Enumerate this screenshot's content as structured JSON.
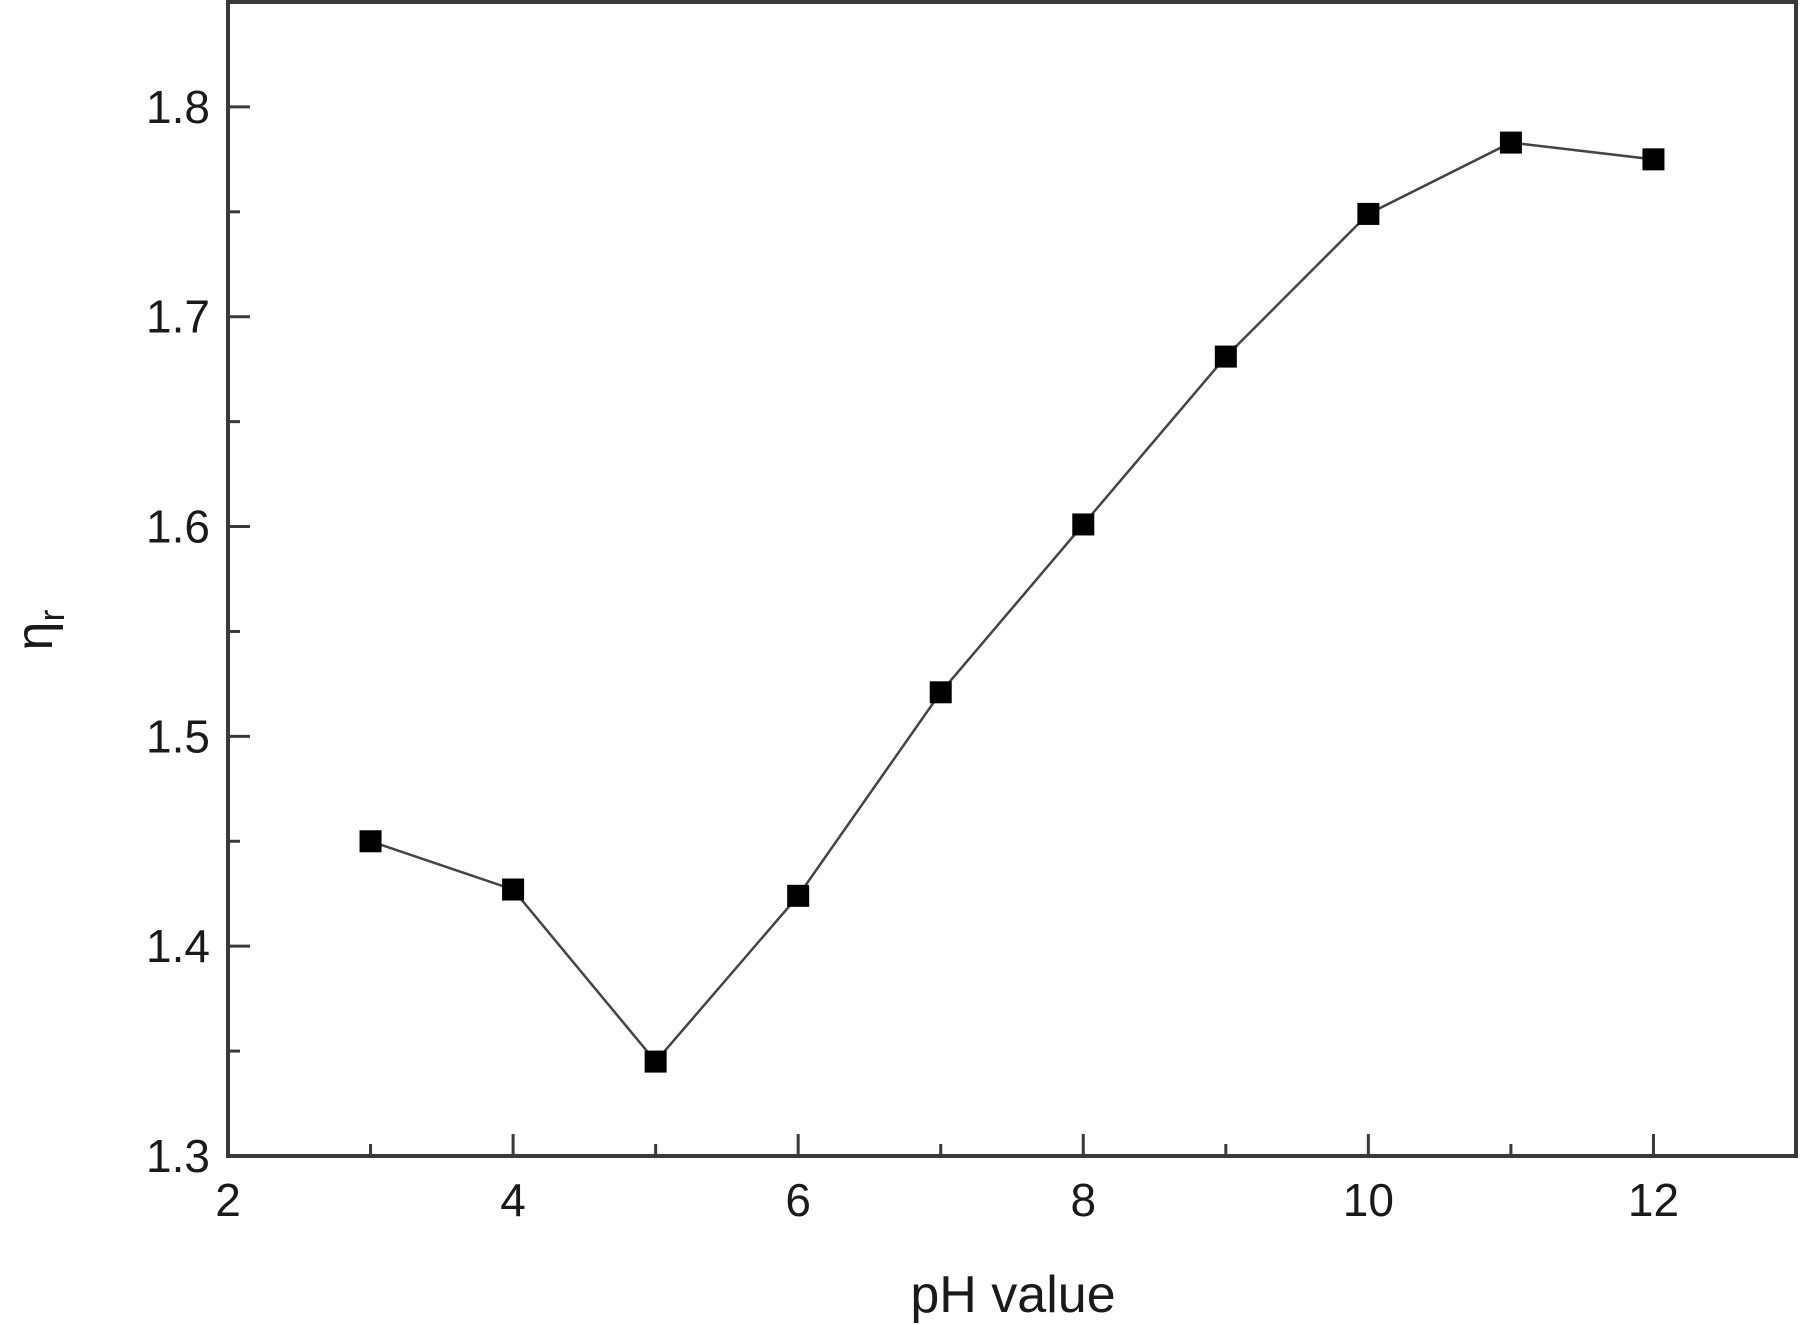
{
  "chart_data": {
    "type": "line",
    "xlabel": "pH value",
    "ylabel": "η",
    "ylabel_subscript": "r",
    "xlim": [
      2,
      13
    ],
    "ylim": [
      1.3,
      1.85
    ],
    "x_ticks": [
      2,
      4,
      6,
      8,
      10,
      12
    ],
    "x_minor_ticks": [
      3,
      5,
      7,
      9,
      11
    ],
    "y_ticks": [
      1.3,
      1.4,
      1.5,
      1.6,
      1.7,
      1.8
    ],
    "y_minor_ticks": [
      1.35,
      1.45,
      1.55,
      1.65,
      1.75
    ],
    "x_tick_labels": [
      "2",
      "4",
      "6",
      "8",
      "10",
      "12"
    ],
    "y_tick_labels": [
      "1.3",
      "1.4",
      "1.5",
      "1.6",
      "1.7",
      "1.8"
    ],
    "grid": false,
    "marker": "square",
    "series": [
      {
        "x": [
          3,
          4,
          5,
          6,
          7,
          8,
          9,
          10,
          11,
          12
        ],
        "y": [
          1.45,
          1.427,
          1.345,
          1.424,
          1.521,
          1.601,
          1.681,
          1.749,
          1.783,
          1.775
        ]
      }
    ]
  }
}
